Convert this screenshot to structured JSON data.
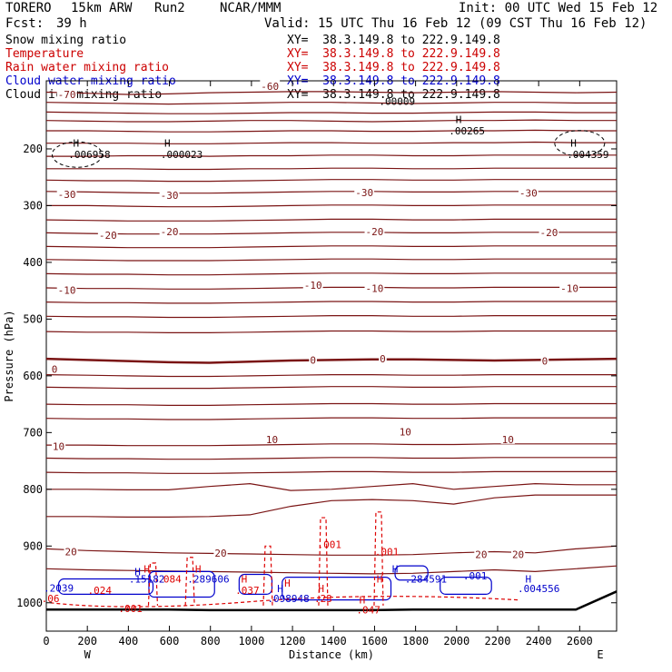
{
  "header": {
    "model": "TORERO",
    "resolution": "15km ARW",
    "run": "Run2",
    "center": "NCAR/MMM",
    "init": "Init: 00 UTC Wed 15 Feb 12",
    "fcst_label": "Fcst:",
    "fcst_value": "39 h",
    "valid": "Valid: 15 UTC Thu 16 Feb 12 (09 CST Thu 16 Feb 12)"
  },
  "fields": [
    {
      "name": "Snow mixing ratio",
      "color": "#000000",
      "xy": "XY=  38.3.149.8 to 222.9.149.8",
      "xy_color": "#000000"
    },
    {
      "name": "Temperature",
      "color": "#cc0000",
      "xy": "XY=  38.3.149.8 to 222.9.149.8",
      "xy_color": "#cc0000"
    },
    {
      "name": "Rain water mixing ratio",
      "color": "#cc0000",
      "xy": "XY=  38.3.149.8 to 222.9.149.8",
      "xy_color": "#cc0000"
    },
    {
      "name": "Cloud water mixing ratio",
      "color": "#0000cc",
      "xy": "XY=  38.3.149.8 to 222.9.149.8",
      "xy_color": "#0000cc"
    },
    {
      "name": "Cloud ice mixing ratio",
      "color": "#000000",
      "xy": "XY=  38.3.149.8 to 222.9.149.8",
      "xy_color": "#000000"
    }
  ],
  "chart_data": {
    "type": "line",
    "xlabel": "Distance (km)",
    "ylabel": "Pressure (hPa)",
    "xlim": [
      0,
      2780
    ],
    "ylim": [
      1050,
      80
    ],
    "x_ticks": [
      0,
      200,
      400,
      600,
      800,
      1000,
      1200,
      1400,
      1600,
      1800,
      2000,
      2200,
      2400,
      2600
    ],
    "y_ticks": [
      200,
      300,
      400,
      500,
      600,
      700,
      800,
      900,
      1000
    ],
    "x_end_labels": {
      "left": "W",
      "right": "E"
    },
    "colors": {
      "temperature": "#7a1414",
      "rain": "#dd0000",
      "cloud_water": "#0000cc",
      "snow": "#000000"
    },
    "temperature_contours": [
      {
        "value": -70,
        "label": "-70",
        "p": [
          100,
          102,
          104,
          103,
          101,
          100,
          99,
          99,
          100,
          101,
          100,
          99,
          100,
          101,
          100
        ]
      },
      {
        "value": -60,
        "label": "-60",
        "p": [
          118,
          119,
          120,
          121,
          120,
          119,
          118,
          118,
          119,
          120,
          119,
          118,
          118,
          119,
          119
        ]
      },
      {
        "value": -50,
        "label": "-50",
        "p": [
          135,
          136,
          137,
          138,
          138,
          137,
          136,
          136,
          137,
          137,
          136,
          135,
          135,
          136,
          136
        ]
      },
      {
        "value": -45,
        "label": "",
        "p": [
          150,
          151,
          152,
          152,
          151,
          150,
          150,
          151,
          152,
          151,
          150,
          150,
          149,
          150,
          150
        ]
      },
      {
        "value": -40,
        "label": "-40",
        "p": [
          168,
          168,
          169,
          170,
          170,
          169,
          168,
          168,
          169,
          169,
          168,
          168,
          167,
          168,
          168
        ]
      },
      {
        "value": -38,
        "label": "",
        "p": [
          190,
          190,
          190,
          191,
          191,
          190,
          189,
          189,
          190,
          190,
          189,
          189,
          188,
          189,
          189
        ]
      },
      {
        "value": -36,
        "label": "",
        "p": [
          213,
          213,
          212,
          212,
          213,
          212,
          212,
          211,
          211,
          212,
          212,
          211,
          211,
          211,
          211
        ]
      },
      {
        "value": -34,
        "label": "",
        "p": [
          235,
          235,
          235,
          236,
          236,
          235,
          235,
          234,
          234,
          235,
          235,
          234,
          234,
          234,
          234
        ]
      },
      {
        "value": -32,
        "label": "",
        "p": [
          255,
          256,
          256,
          257,
          257,
          256,
          255,
          254,
          254,
          255,
          255,
          254,
          254,
          254,
          254
        ]
      },
      {
        "value": -30,
        "label": "-30",
        "p": [
          275,
          276,
          277,
          278,
          278,
          277,
          276,
          275,
          275,
          276,
          276,
          275,
          275,
          275,
          275
        ]
      },
      {
        "value": -25,
        "label": "",
        "p": [
          300,
          300,
          301,
          302,
          302,
          301,
          300,
          299,
          299,
          300,
          300,
          299,
          299,
          299,
          299
        ]
      },
      {
        "value": -22,
        "label": "",
        "p": [
          325,
          326,
          327,
          327,
          327,
          326,
          325,
          324,
          324,
          325,
          325,
          324,
          324,
          324,
          324
        ]
      },
      {
        "value": -20,
        "label": "-20",
        "p": [
          348,
          349,
          350,
          350,
          350,
          349,
          348,
          347,
          347,
          348,
          348,
          347,
          347,
          347,
          347
        ]
      },
      {
        "value": -17,
        "label": "",
        "p": [
          372,
          373,
          374,
          374,
          374,
          373,
          372,
          371,
          371,
          372,
          372,
          371,
          371,
          371,
          371
        ]
      },
      {
        "value": -14,
        "label": "",
        "p": [
          395,
          396,
          397,
          397,
          397,
          396,
          395,
          394,
          394,
          395,
          395,
          394,
          394,
          394,
          394
        ]
      },
      {
        "value": -12,
        "label": "",
        "p": [
          420,
          421,
          421,
          422,
          422,
          421,
          420,
          419,
          419,
          420,
          420,
          419,
          419,
          419,
          419
        ]
      },
      {
        "value": -10,
        "label": "-10",
        "p": [
          445,
          446,
          446,
          447,
          447,
          446,
          445,
          444,
          444,
          445,
          445,
          444,
          444,
          444,
          444
        ]
      },
      {
        "value": -7,
        "label": "",
        "p": [
          470,
          471,
          471,
          472,
          472,
          471,
          470,
          469,
          469,
          470,
          470,
          469,
          469,
          469,
          469
        ]
      },
      {
        "value": -5,
        "label": "",
        "p": [
          495,
          496,
          496,
          497,
          497,
          496,
          495,
          494,
          494,
          495,
          495,
          494,
          494,
          494,
          494
        ]
      },
      {
        "value": -2,
        "label": "",
        "p": [
          522,
          523,
          523,
          524,
          524,
          523,
          522,
          521,
          521,
          522,
          522,
          521,
          521,
          521,
          521
        ]
      },
      {
        "value": 0,
        "label": "0",
        "bold": true,
        "p": [
          570,
          572,
          574,
          576,
          577,
          575,
          573,
          572,
          571,
          571,
          572,
          573,
          572,
          571,
          570
        ]
      },
      {
        "value": 2,
        "label": "",
        "p": [
          598,
          599,
          600,
          601,
          601,
          600,
          599,
          598,
          598,
          599,
          599,
          598,
          598,
          598,
          598
        ]
      },
      {
        "value": 4,
        "label": "",
        "p": [
          620,
          621,
          622,
          622,
          622,
          621,
          620,
          619,
          619,
          620,
          620,
          619,
          619,
          619,
          619
        ]
      },
      {
        "value": 6,
        "label": "",
        "p": [
          650,
          651,
          651,
          652,
          652,
          651,
          650,
          649,
          649,
          650,
          650,
          649,
          649,
          649,
          649
        ]
      },
      {
        "value": 8,
        "label": "",
        "p": [
          675,
          676,
          676,
          677,
          677,
          676,
          675,
          674,
          674,
          675,
          675,
          674,
          674,
          674,
          674
        ]
      },
      {
        "value": 10,
        "label": "10",
        "p": [
          722,
          722,
          723,
          723,
          723,
          722,
          721,
          720,
          720,
          721,
          721,
          720,
          720,
          720,
          720
        ]
      },
      {
        "value": 12,
        "label": "",
        "p": [
          745,
          746,
          746,
          747,
          747,
          746,
          745,
          744,
          744,
          745,
          745,
          744,
          744,
          744,
          744
        ]
      },
      {
        "value": 14,
        "label": "",
        "p": [
          770,
          771,
          771,
          772,
          772,
          771,
          770,
          769,
          769,
          770,
          770,
          769,
          769,
          769,
          769
        ]
      },
      {
        "value": 16,
        "label": "",
        "p": [
          800,
          800,
          801,
          801,
          795,
          790,
          802,
          800,
          795,
          790,
          800,
          795,
          790,
          792,
          792
        ]
      },
      {
        "value": 18,
        "label": "",
        "p": [
          848,
          848,
          849,
          849,
          848,
          845,
          830,
          820,
          818,
          820,
          826,
          815,
          810,
          810,
          810
        ]
      },
      {
        "value": 20,
        "label": "20",
        "p": [
          905,
          908,
          910,
          912,
          913,
          914,
          915,
          916,
          916,
          915,
          912,
          910,
          912,
          905,
          900
        ]
      },
      {
        "value": 22,
        "label": "",
        "p": [
          940,
          942,
          943,
          944,
          945,
          946,
          947,
          948,
          949,
          948,
          945,
          942,
          945,
          940,
          935
        ]
      }
    ],
    "temp_labels": [
      {
        "label": "-70",
        "x": 100,
        "p": 104
      },
      {
        "label": "-60",
        "x": 1090,
        "p": 90
      },
      {
        "label": "-30",
        "x": 100,
        "p": 280
      },
      {
        "label": "-30",
        "x": 600,
        "p": 282
      },
      {
        "label": "-30",
        "x": 1550,
        "p": 277
      },
      {
        "label": "-30",
        "x": 2350,
        "p": 278
      },
      {
        "label": "-20",
        "x": 300,
        "p": 352
      },
      {
        "label": "-20",
        "x": 600,
        "p": 346
      },
      {
        "label": "-20",
        "x": 1600,
        "p": 346
      },
      {
        "label": "-20",
        "x": 2450,
        "p": 347
      },
      {
        "label": "-10",
        "x": 100,
        "p": 449
      },
      {
        "label": "-10",
        "x": 1300,
        "p": 440
      },
      {
        "label": "-10",
        "x": 1600,
        "p": 446
      },
      {
        "label": "-10",
        "x": 2550,
        "p": 446
      },
      {
        "label": "0",
        "x": 40,
        "p": 588
      },
      {
        "label": "0",
        "x": 1300,
        "p": 572
      },
      {
        "label": "0",
        "x": 1640,
        "p": 570
      },
      {
        "label": "0",
        "x": 2430,
        "p": 574
      },
      {
        "label": "10",
        "x": 60,
        "p": 724
      },
      {
        "label": "10",
        "x": 1100,
        "p": 712
      },
      {
        "label": "10",
        "x": 1750,
        "p": 699
      },
      {
        "label": "10",
        "x": 2250,
        "p": 712
      },
      {
        "label": "20",
        "x": 120,
        "p": 910
      },
      {
        "label": "20",
        "x": 850,
        "p": 912
      },
      {
        "label": "20",
        "x": 2120,
        "p": 915
      },
      {
        "label": "20",
        "x": 2300,
        "p": 915
      }
    ],
    "snow_labels": [
      {
        "label": "H",
        "x": 145,
        "p": 190
      },
      {
        "label": ".006958",
        "x": 210,
        "p": 210
      },
      {
        "label": "H",
        "x": 590,
        "p": 190
      },
      {
        "label": ".000023",
        "x": 660,
        "p": 210
      },
      {
        "label": "H",
        "x": 2010,
        "p": 148
      },
      {
        "label": ".00265",
        "x": 2050,
        "p": 168
      },
      {
        "label": "H",
        "x": 2570,
        "p": 190
      },
      {
        "label": ".004359",
        "x": 2640,
        "p": 210
      },
      {
        "label": ".00009",
        "x": 1710,
        "p": 116
      }
    ],
    "rain_labels": [
      {
        "label": ".001",
        "x": 1380,
        "p": 897
      },
      {
        "label": ".001",
        "x": 1660,
        "p": 910
      },
      {
        "label": "H",
        "x": 490,
        "p": 940
      },
      {
        "label": ".084",
        "x": 600,
        "p": 958
      },
      {
        "label": "H",
        "x": 740,
        "p": 940
      },
      {
        "label": "H",
        "x": 965,
        "p": 958
      },
      {
        "label": ".037",
        "x": 980,
        "p": 978
      },
      {
        "label": "H",
        "x": 1340,
        "p": 975
      },
      {
        "label": "H",
        "x": 1540,
        "p": 995
      },
      {
        "label": ".047",
        "x": 1570,
        "p": 1012
      },
      {
        "label": ".024",
        "x": 260,
        "p": 978
      },
      {
        "label": ".06",
        "x": 20,
        "p": 992
      },
      {
        "label": ".001",
        "x": 410,
        "p": 1010
      },
      {
        "label": "H",
        "x": 1625,
        "p": 958
      },
      {
        "label": "H",
        "x": 1175,
        "p": 965
      },
      {
        "label": ".23",
        "x": 1350,
        "p": 992
      }
    ],
    "cloud_labels": [
      {
        "label": "H",
        "x": 445,
        "p": 945
      },
      {
        "label": ".15182",
        "x": 490,
        "p": 958
      },
      {
        "label": ".289606",
        "x": 790,
        "p": 958
      },
      {
        "label": ".2039",
        "x": 60,
        "p": 974
      },
      {
        "label": "H",
        "x": 1140,
        "p": 975
      },
      {
        "label": ".098948",
        "x": 1180,
        "p": 992
      },
      {
        "label": "H",
        "x": 1700,
        "p": 940
      },
      {
        "label": ".284591",
        "x": 1850,
        "p": 958
      },
      {
        "label": ".001",
        "x": 2090,
        "p": 952
      },
      {
        "label": "H",
        "x": 2350,
        "p": 958
      },
      {
        "label": ".004556",
        "x": 2400,
        "p": 975
      }
    ],
    "ground_p": [
      1012,
      1012,
      1012,
      1012,
      1013,
      1013,
      1013,
      1013,
      1013,
      1012,
      1012,
      1012,
      1012,
      1012,
      980
    ]
  }
}
